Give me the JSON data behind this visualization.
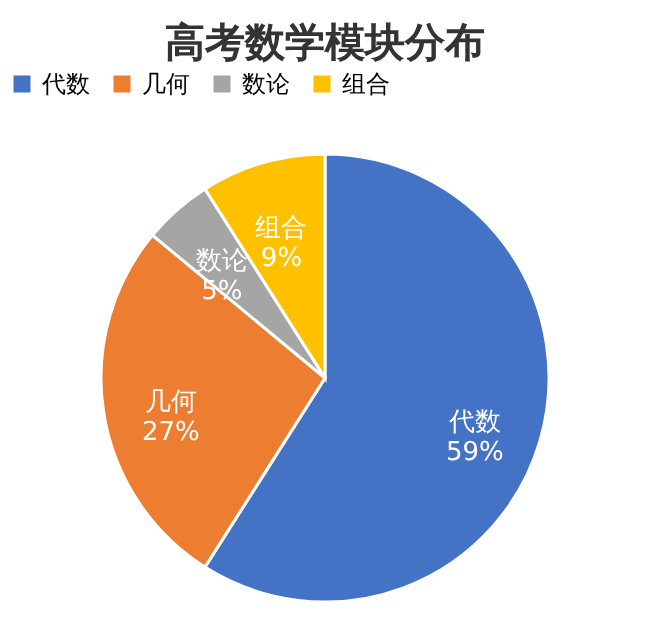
{
  "chart_data": {
    "type": "pie",
    "title": "高考数学模块分布",
    "categories": [
      "代数",
      "几何",
      "数论",
      "组合"
    ],
    "values": [
      59,
      27,
      5,
      9
    ],
    "value_labels": [
      "59%",
      "27%",
      "5%",
      "9%"
    ],
    "colors": [
      "#4472c4",
      "#ed7d31",
      "#a5a5a5",
      "#ffc000"
    ],
    "legend": "top"
  }
}
